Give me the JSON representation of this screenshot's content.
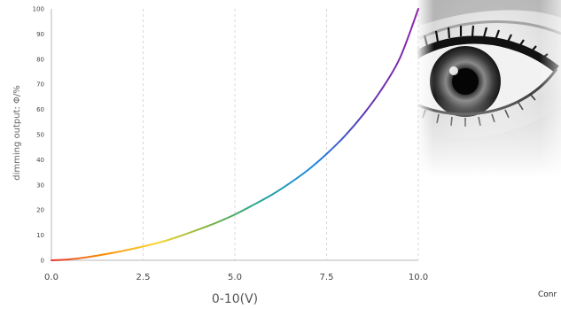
{
  "chart_data": {
    "type": "line",
    "title": "",
    "xlabel": "0-10(V)",
    "ylabel": "dimming output: Φ/%",
    "xlim": [
      0,
      10
    ],
    "ylim": [
      0,
      100
    ],
    "xticks": [
      0,
      2.5,
      5,
      7.5,
      10
    ],
    "xtick_labels": [
      "0.0",
      "2.5",
      "5.0",
      "7.5",
      "10.0"
    ],
    "yticks": [
      0,
      10,
      20,
      30,
      40,
      50,
      60,
      70,
      80,
      90,
      100
    ],
    "ytick_labels": [
      "0",
      "10",
      "20",
      "30",
      "40",
      "50",
      "60",
      "70",
      "80",
      "90",
      "100"
    ],
    "grid": "vertical dashed at x ticks",
    "line_coloring": "rainbow gradient (red → orange → yellow → green → cyan → blue → purple)",
    "series": [
      {
        "x": [
          0,
          0.5,
          1,
          1.5,
          2,
          2.5,
          3,
          3.5,
          4,
          4.5,
          5,
          5.5,
          6,
          6.5,
          7,
          7.5,
          8,
          8.5,
          9,
          9.5,
          10
        ],
        "values": [
          0,
          0.4,
          1.3,
          2.5,
          3.9,
          5.5,
          7.3,
          9.6,
          12.2,
          15,
          18.2,
          22,
          26,
          30.7,
          36,
          42.3,
          49.5,
          58,
          68,
          80.5,
          100
        ]
      }
    ],
    "gradient_colors": [
      "#e53935",
      "#fb8c00",
      "#fdd835",
      "#7cb342",
      "#26a69a",
      "#1e88e5",
      "#5e35b1",
      "#8e24aa"
    ]
  },
  "decoration": {
    "image": "eye-photo",
    "caption": "Conr"
  },
  "colors": {
    "axis": "#cfcfcf",
    "grid": "#d8d8d8",
    "tick_text": "#444444"
  }
}
